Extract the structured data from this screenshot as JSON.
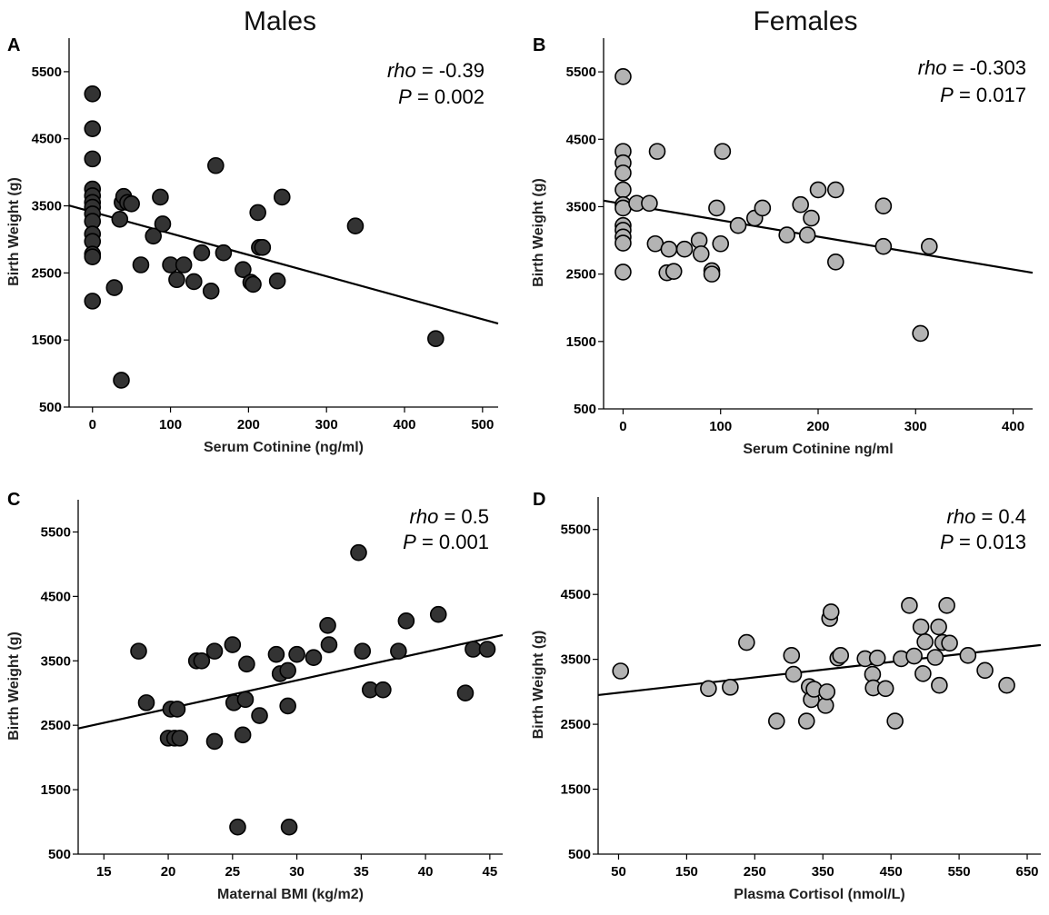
{
  "column_titles": [
    "Males",
    "Females"
  ],
  "chart_data": [
    {
      "panel": "A",
      "type": "scatter",
      "group": "Males",
      "xlabel": "Serum Cotinine (ng/ml)",
      "ylabel": "Birth Weight (g)",
      "xlim": [
        -30,
        520
      ],
      "ylim": [
        500,
        6000
      ],
      "xticks": [
        0,
        100,
        200,
        300,
        400,
        500
      ],
      "yticks": [
        500,
        1500,
        2500,
        3500,
        4500,
        5500
      ],
      "marker_color": "#333333",
      "stat": {
        "rho_label": "rho",
        "rho_value": " = -0.39",
        "p_label": "P",
        "p_value": " = 0.002"
      },
      "trendline": {
        "x": [
          -30,
          520
        ],
        "y": [
          3505,
          1745
        ]
      },
      "points": [
        {
          "x": 0,
          "y": 5170
        },
        {
          "x": 0,
          "y": 4650
        },
        {
          "x": 0,
          "y": 4200
        },
        {
          "x": 0,
          "y": 3750
        },
        {
          "x": 0,
          "y": 3650
        },
        {
          "x": 0,
          "y": 3550
        },
        {
          "x": 0,
          "y": 3480
        },
        {
          "x": 0,
          "y": 3380
        },
        {
          "x": 0,
          "y": 3270
        },
        {
          "x": 0,
          "y": 3080
        },
        {
          "x": 0,
          "y": 2970
        },
        {
          "x": 0,
          "y": 2780
        },
        {
          "x": 0,
          "y": 2740
        },
        {
          "x": 0,
          "y": 2080
        },
        {
          "x": 28,
          "y": 2280
        },
        {
          "x": 35,
          "y": 3300
        },
        {
          "x": 38,
          "y": 3550
        },
        {
          "x": 40,
          "y": 3640
        },
        {
          "x": 45,
          "y": 3550
        },
        {
          "x": 50,
          "y": 3530
        },
        {
          "x": 37,
          "y": 900
        },
        {
          "x": 62,
          "y": 2620
        },
        {
          "x": 78,
          "y": 3050
        },
        {
          "x": 87,
          "y": 3630
        },
        {
          "x": 90,
          "y": 3230
        },
        {
          "x": 100,
          "y": 2620
        },
        {
          "x": 108,
          "y": 2400
        },
        {
          "x": 117,
          "y": 2620
        },
        {
          "x": 130,
          "y": 2370
        },
        {
          "x": 140,
          "y": 2800
        },
        {
          "x": 152,
          "y": 2230
        },
        {
          "x": 158,
          "y": 4100
        },
        {
          "x": 168,
          "y": 2800
        },
        {
          "x": 193,
          "y": 2550
        },
        {
          "x": 203,
          "y": 2360
        },
        {
          "x": 206,
          "y": 2330
        },
        {
          "x": 212,
          "y": 3400
        },
        {
          "x": 214,
          "y": 2880
        },
        {
          "x": 218,
          "y": 2880
        },
        {
          "x": 237,
          "y": 2380
        },
        {
          "x": 243,
          "y": 3630
        },
        {
          "x": 337,
          "y": 3200
        },
        {
          "x": 440,
          "y": 1520
        }
      ]
    },
    {
      "panel": "B",
      "type": "scatter",
      "group": "Females",
      "xlabel": "Serum Cotinine ng/ml",
      "ylabel": "Birth Weight (g)",
      "xlim": [
        -20,
        420
      ],
      "ylim": [
        500,
        6000
      ],
      "xticks": [
        0,
        100,
        200,
        300,
        400
      ],
      "yticks": [
        500,
        1500,
        2500,
        3500,
        4500,
        5500
      ],
      "marker_color": "#b3b3b3",
      "stat": {
        "rho_label": "rho",
        "rho_value": " = -0.303",
        "p_label": "P",
        "p_value": " = 0.017"
      },
      "trendline": {
        "x": [
          -20,
          420
        ],
        "y": [
          3590,
          2520
        ]
      },
      "points": [
        {
          "x": 0,
          "y": 5430
        },
        {
          "x": 0,
          "y": 4320
        },
        {
          "x": 0,
          "y": 4150
        },
        {
          "x": 0,
          "y": 4000
        },
        {
          "x": 0,
          "y": 3750
        },
        {
          "x": 0,
          "y": 3530
        },
        {
          "x": 0,
          "y": 3480
        },
        {
          "x": 0,
          "y": 3220
        },
        {
          "x": 0,
          "y": 3150
        },
        {
          "x": 0,
          "y": 3050
        },
        {
          "x": 0,
          "y": 2960
        },
        {
          "x": 0,
          "y": 2530
        },
        {
          "x": 14,
          "y": 3550
        },
        {
          "x": 27,
          "y": 3550
        },
        {
          "x": 33,
          "y": 2950
        },
        {
          "x": 35,
          "y": 4320
        },
        {
          "x": 45,
          "y": 2520
        },
        {
          "x": 47,
          "y": 2870
        },
        {
          "x": 52,
          "y": 2540
        },
        {
          "x": 63,
          "y": 2870
        },
        {
          "x": 78,
          "y": 3000
        },
        {
          "x": 80,
          "y": 2800
        },
        {
          "x": 91,
          "y": 2550
        },
        {
          "x": 91,
          "y": 2500
        },
        {
          "x": 96,
          "y": 3480
        },
        {
          "x": 100,
          "y": 2950
        },
        {
          "x": 102,
          "y": 4320
        },
        {
          "x": 118,
          "y": 3220
        },
        {
          "x": 135,
          "y": 3330
        },
        {
          "x": 143,
          "y": 3480
        },
        {
          "x": 168,
          "y": 3080
        },
        {
          "x": 182,
          "y": 3530
        },
        {
          "x": 189,
          "y": 3080
        },
        {
          "x": 193,
          "y": 3330
        },
        {
          "x": 200,
          "y": 3750
        },
        {
          "x": 218,
          "y": 3750
        },
        {
          "x": 218,
          "y": 2680
        },
        {
          "x": 267,
          "y": 3510
        },
        {
          "x": 267,
          "y": 2910
        },
        {
          "x": 305,
          "y": 1620
        },
        {
          "x": 314,
          "y": 2910
        }
      ]
    },
    {
      "panel": "C",
      "type": "scatter",
      "group": "Males",
      "xlabel": "Maternal BMI (kg/m2)",
      "ylabel": "Birth Weight (g)",
      "xlim": [
        13,
        46
      ],
      "ylim": [
        500,
        6000
      ],
      "xticks": [
        15,
        20,
        25,
        30,
        35,
        40,
        45
      ],
      "yticks": [
        500,
        1500,
        2500,
        3500,
        4500,
        5500
      ],
      "marker_color": "#333333",
      "stat": {
        "rho_label": "rho",
        "rho_value": " = 0.5",
        "p_label": "P",
        "p_value": " = 0.001"
      },
      "trendline": {
        "x": [
          13,
          46
        ],
        "y": [
          2450,
          3900
        ]
      },
      "points": [
        {
          "x": 17.7,
          "y": 3650
        },
        {
          "x": 18.3,
          "y": 2850
        },
        {
          "x": 20,
          "y": 2300
        },
        {
          "x": 20.2,
          "y": 2750
        },
        {
          "x": 20.5,
          "y": 2300
        },
        {
          "x": 20.7,
          "y": 2750
        },
        {
          "x": 20.9,
          "y": 2300
        },
        {
          "x": 22.2,
          "y": 3500
        },
        {
          "x": 22.6,
          "y": 3500
        },
        {
          "x": 23.6,
          "y": 3650
        },
        {
          "x": 23.6,
          "y": 2250
        },
        {
          "x": 25,
          "y": 3750
        },
        {
          "x": 25.1,
          "y": 2850
        },
        {
          "x": 25.4,
          "y": 920
        },
        {
          "x": 25.8,
          "y": 2350
        },
        {
          "x": 26,
          "y": 2900
        },
        {
          "x": 26.1,
          "y": 3450
        },
        {
          "x": 27.1,
          "y": 2650
        },
        {
          "x": 28.4,
          "y": 3600
        },
        {
          "x": 28.7,
          "y": 3300
        },
        {
          "x": 29.3,
          "y": 3350
        },
        {
          "x": 29.3,
          "y": 2800
        },
        {
          "x": 29.4,
          "y": 920
        },
        {
          "x": 30,
          "y": 3600
        },
        {
          "x": 31.3,
          "y": 3550
        },
        {
          "x": 32.4,
          "y": 4050
        },
        {
          "x": 32.5,
          "y": 3750
        },
        {
          "x": 34.8,
          "y": 5180
        },
        {
          "x": 35.1,
          "y": 3650
        },
        {
          "x": 35.7,
          "y": 3050
        },
        {
          "x": 36.7,
          "y": 3050
        },
        {
          "x": 37.9,
          "y": 3650
        },
        {
          "x": 38.5,
          "y": 4120
        },
        {
          "x": 41,
          "y": 4220
        },
        {
          "x": 43.1,
          "y": 3000
        },
        {
          "x": 43.7,
          "y": 3680
        },
        {
          "x": 44.8,
          "y": 3680
        }
      ]
    },
    {
      "panel": "D",
      "type": "scatter",
      "group": "Females",
      "xlabel": "Plasma Cortisol (nmol/L)",
      "ylabel": "Birth Weight (g)",
      "xlim": [
        20,
        670
      ],
      "ylim": [
        500,
        6000
      ],
      "xticks": [
        50,
        150,
        250,
        350,
        450,
        550,
        650
      ],
      "yticks": [
        500,
        1500,
        2500,
        3500,
        4500,
        5500
      ],
      "marker_color": "#b3b3b3",
      "stat": {
        "rho_label": "rho",
        "rho_value": " = 0.4",
        "p_label": "P",
        "p_value": " = 0.013"
      },
      "trendline": {
        "x": [
          20,
          670
        ],
        "y": [
          2950,
          3720
        ]
      },
      "points": [
        {
          "x": 53,
          "y": 3320
        },
        {
          "x": 182,
          "y": 3050
        },
        {
          "x": 214,
          "y": 3070
        },
        {
          "x": 238,
          "y": 3760
        },
        {
          "x": 282,
          "y": 2550
        },
        {
          "x": 304,
          "y": 3560
        },
        {
          "x": 307,
          "y": 3270
        },
        {
          "x": 326,
          "y": 2550
        },
        {
          "x": 330,
          "y": 3080
        },
        {
          "x": 333,
          "y": 2880
        },
        {
          "x": 337,
          "y": 3040
        },
        {
          "x": 354,
          "y": 2790
        },
        {
          "x": 356,
          "y": 3000
        },
        {
          "x": 360,
          "y": 4130
        },
        {
          "x": 362,
          "y": 4230
        },
        {
          "x": 372,
          "y": 3520
        },
        {
          "x": 376,
          "y": 3560
        },
        {
          "x": 412,
          "y": 3510
        },
        {
          "x": 423,
          "y": 3270
        },
        {
          "x": 424,
          "y": 3060
        },
        {
          "x": 430,
          "y": 3520
        },
        {
          "x": 442,
          "y": 3050
        },
        {
          "x": 456,
          "y": 2550
        },
        {
          "x": 465,
          "y": 3510
        },
        {
          "x": 477,
          "y": 4330
        },
        {
          "x": 484,
          "y": 3550
        },
        {
          "x": 494,
          "y": 4000
        },
        {
          "x": 497,
          "y": 3280
        },
        {
          "x": 500,
          "y": 3770
        },
        {
          "x": 515,
          "y": 3530
        },
        {
          "x": 520,
          "y": 4000
        },
        {
          "x": 521,
          "y": 3100
        },
        {
          "x": 526,
          "y": 3760
        },
        {
          "x": 532,
          "y": 4330
        },
        {
          "x": 536,
          "y": 3750
        },
        {
          "x": 563,
          "y": 3560
        },
        {
          "x": 588,
          "y": 3330
        },
        {
          "x": 620,
          "y": 3100
        }
      ]
    }
  ]
}
